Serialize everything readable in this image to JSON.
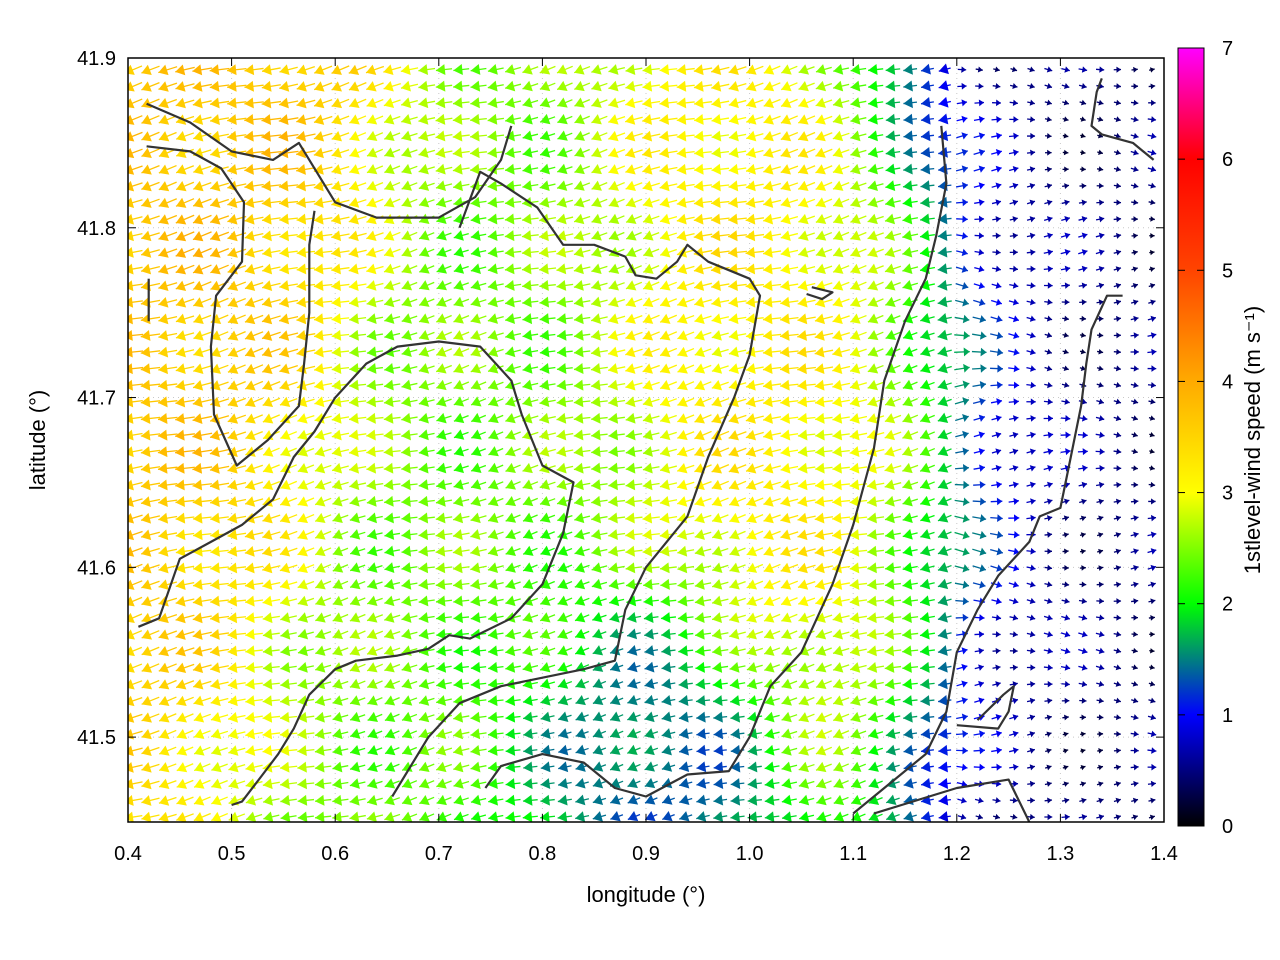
{
  "chart_data": {
    "type": "vector-field",
    "xlabel": "longitude (°)",
    "ylabel": "latitude (°)",
    "xlim": [
      0.4,
      1.4
    ],
    "ylim": [
      41.45,
      41.9
    ],
    "x_ticks": [
      0.4,
      0.5,
      0.6,
      0.7,
      0.8,
      0.9,
      1.0,
      1.1,
      1.2,
      1.3,
      1.4
    ],
    "y_ticks": [
      41.5,
      41.6,
      41.7,
      41.8,
      41.9
    ],
    "x_tick_labels": [
      "0.4",
      "0.5",
      "0.6",
      "0.7",
      "0.8",
      "0.9",
      "1.0",
      "1.1",
      "1.2",
      "1.3",
      "1.4"
    ],
    "y_tick_labels": [
      "41.5",
      "41.6",
      "41.7",
      "41.8",
      "41.9"
    ],
    "colorbar": {
      "label": "1stlevel-wind speed (m s⁻¹)",
      "range": [
        0,
        7
      ],
      "ticks": [
        0,
        1,
        2,
        3,
        4,
        5,
        6,
        7
      ],
      "tick_labels": [
        "0",
        "1",
        "2",
        "3",
        "4",
        "5",
        "6",
        "7"
      ],
      "colormap": [
        "#000000",
        "#0000ff",
        "#00ff00",
        "#ffff00",
        "#ffaa00",
        "#ff0000",
        "#ff00ff"
      ]
    },
    "grid": "dotted",
    "dominant_direction": "westward in the west and centre, weak and eastward in the east (lon > 1.2)",
    "speed_regions": [
      {
        "lon": [
          0.4,
          0.55
        ],
        "lat": [
          41.6,
          41.9
        ],
        "speed": 4.3
      },
      {
        "lon": [
          0.6,
          0.85
        ],
        "lat": [
          41.45,
          41.75
        ],
        "speed": 2.8
      },
      {
        "lon": [
          0.95,
          1.18
        ],
        "lat": [
          41.55,
          41.8
        ],
        "speed": 3.8
      },
      {
        "lon": [
          0.82,
          0.96
        ],
        "lat": [
          41.45,
          41.55
        ],
        "speed": 1.3
      },
      {
        "lon": [
          1.2,
          1.4
        ],
        "lat": [
          41.45,
          41.9
        ],
        "speed": 0.5
      }
    ],
    "contour_lines": [
      [
        [
          0.418,
          41.873
        ],
        [
          0.46,
          41.862
        ],
        [
          0.5,
          41.845
        ],
        [
          0.54,
          41.84
        ],
        [
          0.565,
          41.85
        ],
        [
          0.58,
          41.835
        ],
        [
          0.6,
          41.815
        ],
        [
          0.64,
          41.806
        ],
        [
          0.7,
          41.806
        ],
        [
          0.735,
          41.818
        ],
        [
          0.76,
          41.84
        ],
        [
          0.77,
          41.86
        ]
      ],
      [
        [
          0.418,
          41.848
        ],
        [
          0.46,
          41.845
        ],
        [
          0.49,
          41.835
        ],
        [
          0.512,
          41.815
        ],
        [
          0.51,
          41.78
        ],
        [
          0.485,
          41.76
        ],
        [
          0.48,
          41.73
        ],
        [
          0.483,
          41.69
        ],
        [
          0.505,
          41.66
        ],
        [
          0.535,
          41.675
        ],
        [
          0.565,
          41.695
        ],
        [
          0.57,
          41.72
        ],
        [
          0.575,
          41.75
        ],
        [
          0.575,
          41.79
        ],
        [
          0.58,
          41.81
        ]
      ],
      [
        [
          0.42,
          41.77
        ],
        [
          0.42,
          41.745
        ]
      ],
      [
        [
          0.41,
          41.565
        ],
        [
          0.43,
          41.57
        ],
        [
          0.45,
          41.605
        ],
        [
          0.48,
          41.615
        ],
        [
          0.51,
          41.625
        ],
        [
          0.54,
          41.64
        ],
        [
          0.56,
          41.665
        ],
        [
          0.58,
          41.68
        ],
        [
          0.6,
          41.7
        ],
        [
          0.63,
          41.72
        ],
        [
          0.66,
          41.73
        ],
        [
          0.7,
          41.733
        ],
        [
          0.74,
          41.73
        ],
        [
          0.755,
          41.72
        ],
        [
          0.77,
          41.71
        ],
        [
          0.78,
          41.69
        ],
        [
          0.8,
          41.66
        ],
        [
          0.83,
          41.65
        ],
        [
          0.82,
          41.62
        ],
        [
          0.8,
          41.59
        ],
        [
          0.77,
          41.57
        ],
        [
          0.73,
          41.558
        ],
        [
          0.71,
          41.56
        ],
        [
          0.69,
          41.552
        ],
        [
          0.66,
          41.548
        ],
        [
          0.62,
          41.545
        ],
        [
          0.6,
          41.54
        ],
        [
          0.575,
          41.525
        ],
        [
          0.56,
          41.505
        ],
        [
          0.545,
          41.49
        ],
        [
          0.53,
          41.478
        ],
        [
          0.51,
          41.462
        ],
        [
          0.5,
          41.46
        ]
      ],
      [
        [
          0.655,
          41.465
        ],
        [
          0.69,
          41.5
        ],
        [
          0.72,
          41.52
        ],
        [
          0.76,
          41.53
        ],
        [
          0.8,
          41.535
        ],
        [
          0.84,
          41.54
        ],
        [
          0.87,
          41.545
        ],
        [
          0.88,
          41.575
        ],
        [
          0.9,
          41.6
        ],
        [
          0.94,
          41.63
        ],
        [
          0.96,
          41.665
        ],
        [
          0.985,
          41.7
        ],
        [
          1.0,
          41.725
        ],
        [
          1.01,
          41.76
        ],
        [
          1.0,
          41.77
        ],
        [
          0.96,
          41.78
        ],
        [
          0.94,
          41.79
        ],
        [
          0.93,
          41.78
        ],
        [
          0.91,
          41.77
        ],
        [
          0.89,
          41.772
        ],
        [
          0.88,
          41.783
        ],
        [
          0.85,
          41.79
        ],
        [
          0.82,
          41.79
        ],
        [
          0.795,
          41.812
        ],
        [
          0.76,
          41.826
        ],
        [
          0.74,
          41.833
        ],
        [
          0.72,
          41.8
        ]
      ],
      [
        [
          0.745,
          41.47
        ],
        [
          0.76,
          41.483
        ],
        [
          0.8,
          41.49
        ],
        [
          0.84,
          41.485
        ],
        [
          0.87,
          41.47
        ],
        [
          0.9,
          41.465
        ],
        [
          0.94,
          41.478
        ],
        [
          0.98,
          41.48
        ],
        [
          1.0,
          41.5
        ],
        [
          1.02,
          41.53
        ],
        [
          1.05,
          41.55
        ],
        [
          1.08,
          41.59
        ],
        [
          1.1,
          41.625
        ],
        [
          1.12,
          41.67
        ],
        [
          1.13,
          41.71
        ],
        [
          1.15,
          41.745
        ],
        [
          1.17,
          41.77
        ],
        [
          1.18,
          41.795
        ],
        [
          1.19,
          41.826
        ],
        [
          1.185,
          41.86
        ]
      ],
      [
        [
          1.1,
          41.455
        ],
        [
          1.13,
          41.47
        ],
        [
          1.17,
          41.49
        ],
        [
          1.19,
          41.515
        ],
        [
          1.2,
          41.55
        ],
        [
          1.22,
          41.575
        ],
        [
          1.24,
          41.595
        ],
        [
          1.27,
          41.615
        ],
        [
          1.28,
          41.63
        ],
        [
          1.3,
          41.635
        ],
        [
          1.31,
          41.665
        ],
        [
          1.32,
          41.695
        ],
        [
          1.325,
          41.72
        ],
        [
          1.33,
          41.74
        ],
        [
          1.345,
          41.76
        ],
        [
          1.36,
          41.76
        ]
      ],
      [
        [
          1.34,
          41.888
        ],
        [
          1.335,
          41.88
        ],
        [
          1.33,
          41.86
        ],
        [
          1.34,
          41.855
        ],
        [
          1.37,
          41.85
        ],
        [
          1.39,
          41.84
        ]
      ],
      [
        [
          1.2,
          41.507
        ],
        [
          1.24,
          41.505
        ],
        [
          1.25,
          41.515
        ],
        [
          1.255,
          41.53
        ],
        [
          1.245,
          41.525
        ],
        [
          1.22,
          41.51
        ]
      ],
      [
        [
          1.06,
          41.765
        ],
        [
          1.08,
          41.762
        ],
        [
          1.07,
          41.758
        ],
        [
          1.055,
          41.761
        ]
      ],
      [
        [
          1.12,
          41.455
        ],
        [
          1.2,
          41.47
        ],
        [
          1.25,
          41.475
        ],
        [
          1.27,
          41.45
        ]
      ]
    ]
  }
}
